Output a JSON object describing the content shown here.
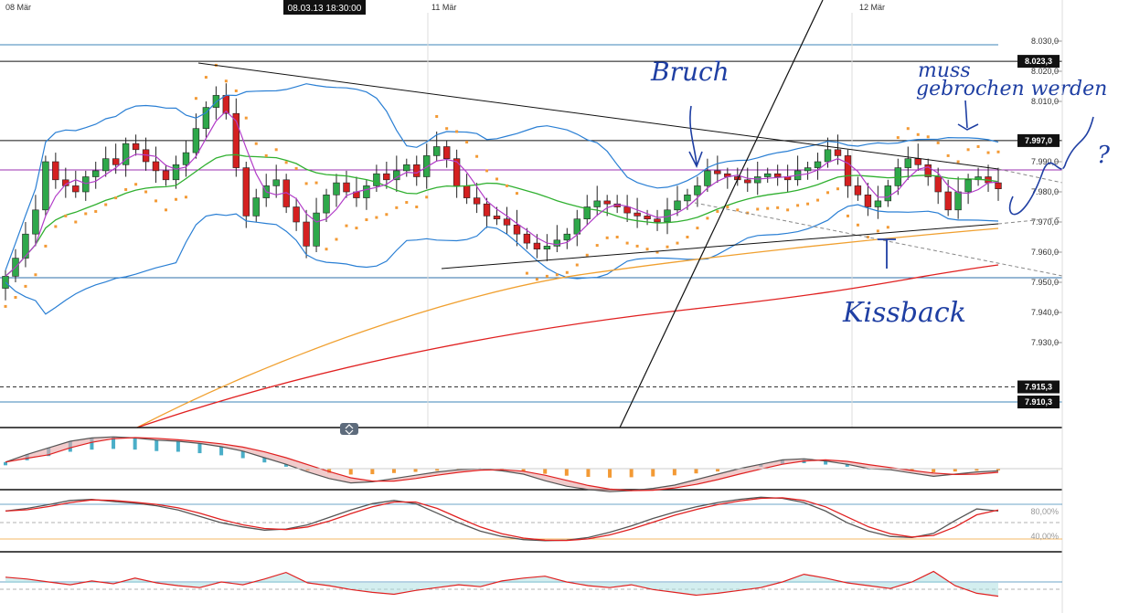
{
  "chart_data": [
    {
      "type": "candlestick",
      "title": "",
      "x_ticks": [
        "08 Mär",
        "11 Mär",
        "12 Mär"
      ],
      "crosshair_time": "08.03.13 18:30:00",
      "ylim": [
        7905,
        8038
      ],
      "y_ticks": [
        "8.030,0",
        "8.020,0",
        "8.010,0",
        "7.990,0",
        "7.980,0",
        "7.970,0",
        "7.960,0",
        "7.950,0",
        "7.940,0",
        "7.930,0"
      ],
      "price_markers": [
        {
          "label": "8.023,3",
          "value": 8023.3
        },
        {
          "label": "7.997,0",
          "value": 7997.0
        },
        {
          "label": "7.915,3",
          "value": 7915.3
        },
        {
          "label": "7.910,3",
          "value": 7910.3
        }
      ],
      "close_series": [
        7952,
        7958,
        7966,
        7974,
        7990,
        7984,
        7982,
        7980,
        7985,
        7987,
        7991,
        7989,
        7996,
        7994,
        7990,
        7987,
        7984,
        7989,
        7993,
        8001,
        8008,
        8012,
        8006,
        7988,
        7972,
        7978,
        7982,
        7984,
        7975,
        7970,
        7962,
        7973,
        7979,
        7983,
        7980,
        7978,
        7982,
        7986,
        7984,
        7987,
        7989,
        7985,
        7992,
        7995,
        7991,
        7982,
        7978,
        7976,
        7972,
        7971,
        7969,
        7966,
        7963,
        7961,
        7962,
        7964,
        7966,
        7971,
        7975,
        7977,
        7976,
        7975,
        7973,
        7972,
        7971,
        7970,
        7974,
        7977,
        7979,
        7982,
        7987,
        7986,
        7985,
        7984,
        7983,
        7985,
        7986,
        7985,
        7984,
        7987,
        7988,
        7990,
        7994,
        7992,
        7982,
        7979,
        7975,
        7977,
        7982,
        7988,
        7991,
        7989,
        7985,
        7980,
        7974,
        7980,
        7984,
        7985,
        7983,
        7981
      ],
      "annotations": [
        "Bruch",
        "muss",
        "gebrochen werden",
        "Kissback",
        "?"
      ]
    },
    {
      "type": "line",
      "title": "",
      "series": [
        {
          "values": [
            0.6,
            1.3,
            1.9,
            2.5,
            2.8,
            2.9,
            2.8,
            2.6,
            2.5,
            2.3,
            2.0,
            1.6,
            1.0,
            0.4,
            -0.3,
            -0.9,
            -1.3,
            -1.2,
            -0.9,
            -0.6,
            -0.3,
            -0.1,
            0.0,
            -0.2,
            -0.5,
            -1.1,
            -1.6,
            -1.9,
            -2.1,
            -2.0,
            -1.8,
            -1.5,
            -1.0,
            -0.5,
            0.0,
            0.4,
            0.8,
            0.9,
            0.7,
            0.4,
            0.0,
            -0.1,
            -0.4,
            -0.7,
            -0.5,
            -0.3,
            -0.2
          ]
        }
      ]
    },
    {
      "type": "line",
      "title": "",
      "y_ticks": [
        "80,00%",
        "40,00%"
      ],
      "series": [
        {
          "values": [
            70,
            75,
            82,
            90,
            92,
            88,
            85,
            80,
            72,
            60,
            48,
            40,
            34,
            36,
            44,
            58,
            72,
            84,
            90,
            84,
            66,
            48,
            32,
            22,
            16,
            14,
            15,
            20,
            30,
            42,
            56,
            68,
            78,
            86,
            92,
            96,
            94,
            86,
            70,
            48,
            32,
            22,
            20,
            28,
            52,
            74,
            70
          ]
        }
      ]
    },
    {
      "type": "line",
      "title": "",
      "series": [
        {
          "values": [
            62,
            58,
            52,
            46,
            54,
            48,
            60,
            50,
            44,
            40,
            52,
            46,
            58,
            72,
            50,
            44,
            36,
            30,
            26,
            34,
            40,
            46,
            42,
            54,
            60,
            64,
            52,
            44,
            40,
            46,
            36,
            30,
            24,
            28,
            34,
            40,
            52,
            68,
            60,
            50,
            44,
            38,
            52,
            74,
            44,
            28,
            22
          ]
        }
      ]
    }
  ]
}
